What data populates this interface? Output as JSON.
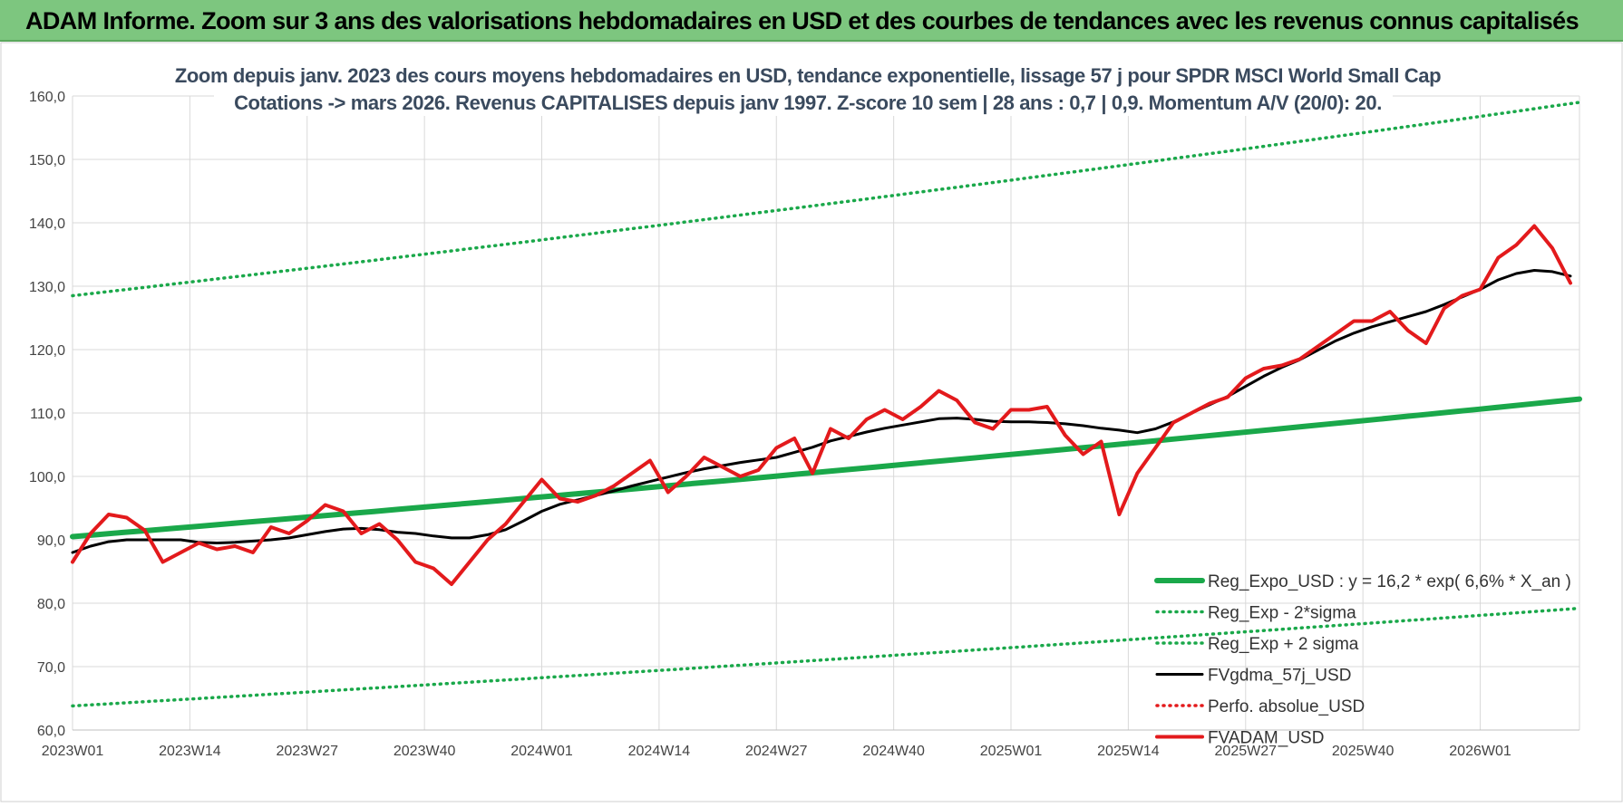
{
  "banner": {
    "title": "ADAM Informe. Zoom sur 3 ans des valorisations hebdomadaires en USD et des courbes de tendances avec les revenus connus capitalisés"
  },
  "colors": {
    "banner_bg": "#7dc67f",
    "reg_expo": "#1aa84a",
    "sigma": "#1aa84a",
    "fvgdma": "#000000",
    "perfo": "#e31a1c",
    "fvadam": "#e31a1c",
    "grid": "#d9d9d9"
  },
  "chart_data": {
    "type": "line",
    "title_lines": [
      "Zoom depuis janv. 2023 des cours moyens hebdomadaires en USD, tendance exponentielle, lissage 57 j pour SPDR MSCI World Small Cap",
      "Cotations -> mars 2026. Revenus CAPITALISES depuis janv 1997. Z-score 10 sem | 28 ans : 0,7 | 0,9. Momentum A/V (20/0): 20."
    ],
    "ylim": [
      60,
      160
    ],
    "yticks": [
      "60,0",
      "70,0",
      "80,0",
      "90,0",
      "100,0",
      "110,0",
      "120,0",
      "130,0",
      "140,0",
      "150,0",
      "160,0"
    ],
    "ytick_values": [
      60,
      70,
      80,
      90,
      100,
      110,
      120,
      130,
      140,
      150,
      160
    ],
    "xlim": [
      1,
      168
    ],
    "xticks": [
      "2023W01",
      "2023W14",
      "2023W27",
      "2023W40",
      "2024W01",
      "2024W14",
      "2024W27",
      "2024W40",
      "2025W01",
      "2025W14",
      "2025W27",
      "2025W40",
      "2026W01"
    ],
    "xtick_weeks": [
      1,
      14,
      27,
      40,
      53,
      66,
      79,
      92,
      105,
      118,
      131,
      144,
      157
    ],
    "grid": true,
    "legend_position": "bottom-right",
    "series": [
      {
        "name": "Reg_Expo_USD : y = 16,2 * exp( 6,6% *  X_an )",
        "style": "thick",
        "color": "#1aa84a",
        "x": [
          1,
          168
        ],
        "values": [
          90.5,
          112.2
        ]
      },
      {
        "name": "Reg_Exp - 2*sigma",
        "style": "dotted",
        "color": "#1aa84a",
        "x": [
          1,
          168
        ],
        "values": [
          63.8,
          79.2
        ]
      },
      {
        "name": "Reg_Exp + 2 sigma",
        "style": "dotted",
        "color": "#1aa84a",
        "x": [
          1,
          168
        ],
        "values": [
          128.5,
          159.0
        ]
      },
      {
        "name": "FVgdma_57j_USD",
        "style": "solid",
        "color": "#000000",
        "x": [
          1,
          3,
          5,
          7,
          9,
          11,
          13,
          15,
          17,
          19,
          21,
          23,
          25,
          27,
          29,
          31,
          33,
          35,
          37,
          39,
          41,
          43,
          45,
          47,
          49,
          51,
          53,
          55,
          57,
          59,
          61,
          63,
          65,
          67,
          69,
          71,
          73,
          75,
          77,
          79,
          81,
          83,
          85,
          87,
          89,
          91,
          93,
          95,
          97,
          99,
          101,
          103,
          105,
          107,
          109,
          111,
          113,
          115,
          117,
          119,
          121,
          123,
          125,
          127,
          129,
          131,
          133,
          135,
          137,
          139,
          141,
          143,
          145,
          147,
          149,
          151,
          153,
          155,
          157,
          159,
          161,
          163,
          165,
          167
        ],
        "values": [
          88.0,
          89.0,
          89.7,
          90.0,
          90.0,
          90.0,
          90.0,
          89.6,
          89.5,
          89.6,
          89.8,
          90.0,
          90.3,
          90.8,
          91.3,
          91.7,
          91.8,
          91.6,
          91.2,
          91.0,
          90.6,
          90.3,
          90.3,
          90.8,
          91.6,
          93.0,
          94.5,
          95.6,
          96.3,
          97.0,
          97.7,
          98.5,
          99.2,
          99.9,
          100.6,
          101.2,
          101.7,
          102.2,
          102.6,
          103.0,
          103.8,
          104.6,
          105.6,
          106.3,
          107.0,
          107.6,
          108.1,
          108.6,
          109.1,
          109.2,
          109.0,
          108.7,
          108.6,
          108.6,
          108.5,
          108.3,
          108.0,
          107.6,
          107.3,
          106.9,
          107.5,
          108.6,
          110.0,
          111.3,
          112.6,
          114.2,
          115.8,
          117.2,
          118.4,
          119.9,
          121.4,
          122.6,
          123.6,
          124.4,
          125.2,
          126.0,
          127.1,
          128.3,
          129.5,
          131.0,
          132.0,
          132.5,
          132.3,
          131.6
        ]
      },
      {
        "name": "Perfo. absolue_USD",
        "style": "dotted",
        "color": "#e31a1c",
        "x": [],
        "values": []
      },
      {
        "name": "FVADAM_USD",
        "style": "solid-thick",
        "color": "#e31a1c",
        "x": [
          1,
          3,
          5,
          7,
          9,
          11,
          13,
          15,
          17,
          19,
          21,
          23,
          25,
          27,
          29,
          31,
          33,
          35,
          37,
          39,
          41,
          43,
          45,
          47,
          49,
          51,
          53,
          55,
          57,
          59,
          61,
          63,
          65,
          67,
          69,
          71,
          73,
          75,
          77,
          79,
          81,
          83,
          85,
          87,
          89,
          91,
          93,
          95,
          97,
          99,
          101,
          103,
          105,
          107,
          109,
          111,
          113,
          115,
          117,
          119,
          121,
          123,
          125,
          127,
          129,
          131,
          133,
          135,
          137,
          139,
          141,
          143,
          145,
          147,
          149,
          151,
          153,
          155,
          157,
          159,
          161,
          163,
          165,
          167
        ],
        "values": [
          86.5,
          91.0,
          94.0,
          93.5,
          91.5,
          86.5,
          88.0,
          89.5,
          88.5,
          89.0,
          88.0,
          92.0,
          91.0,
          93.0,
          95.5,
          94.5,
          91.0,
          92.5,
          90.0,
          86.5,
          85.5,
          83.0,
          86.5,
          90.0,
          92.5,
          96.0,
          99.5,
          96.5,
          96.0,
          97.0,
          98.5,
          100.5,
          102.5,
          97.5,
          100.0,
          103.0,
          101.5,
          100.0,
          101.0,
          104.5,
          106.0,
          100.5,
          107.5,
          106.0,
          109.0,
          110.5,
          109.0,
          111.0,
          113.5,
          112.0,
          108.5,
          107.5,
          110.5,
          110.5,
          111.0,
          106.5,
          103.5,
          105.5,
          94.0,
          100.5,
          104.5,
          108.5,
          110.0,
          111.5,
          112.5,
          115.5,
          117.0,
          117.5,
          118.5,
          120.5,
          122.5,
          124.5,
          124.5,
          126.0,
          123.0,
          121.0,
          126.5,
          128.5,
          129.5,
          134.5,
          136.5,
          139.5,
          136.0,
          130.5
        ]
      }
    ]
  }
}
